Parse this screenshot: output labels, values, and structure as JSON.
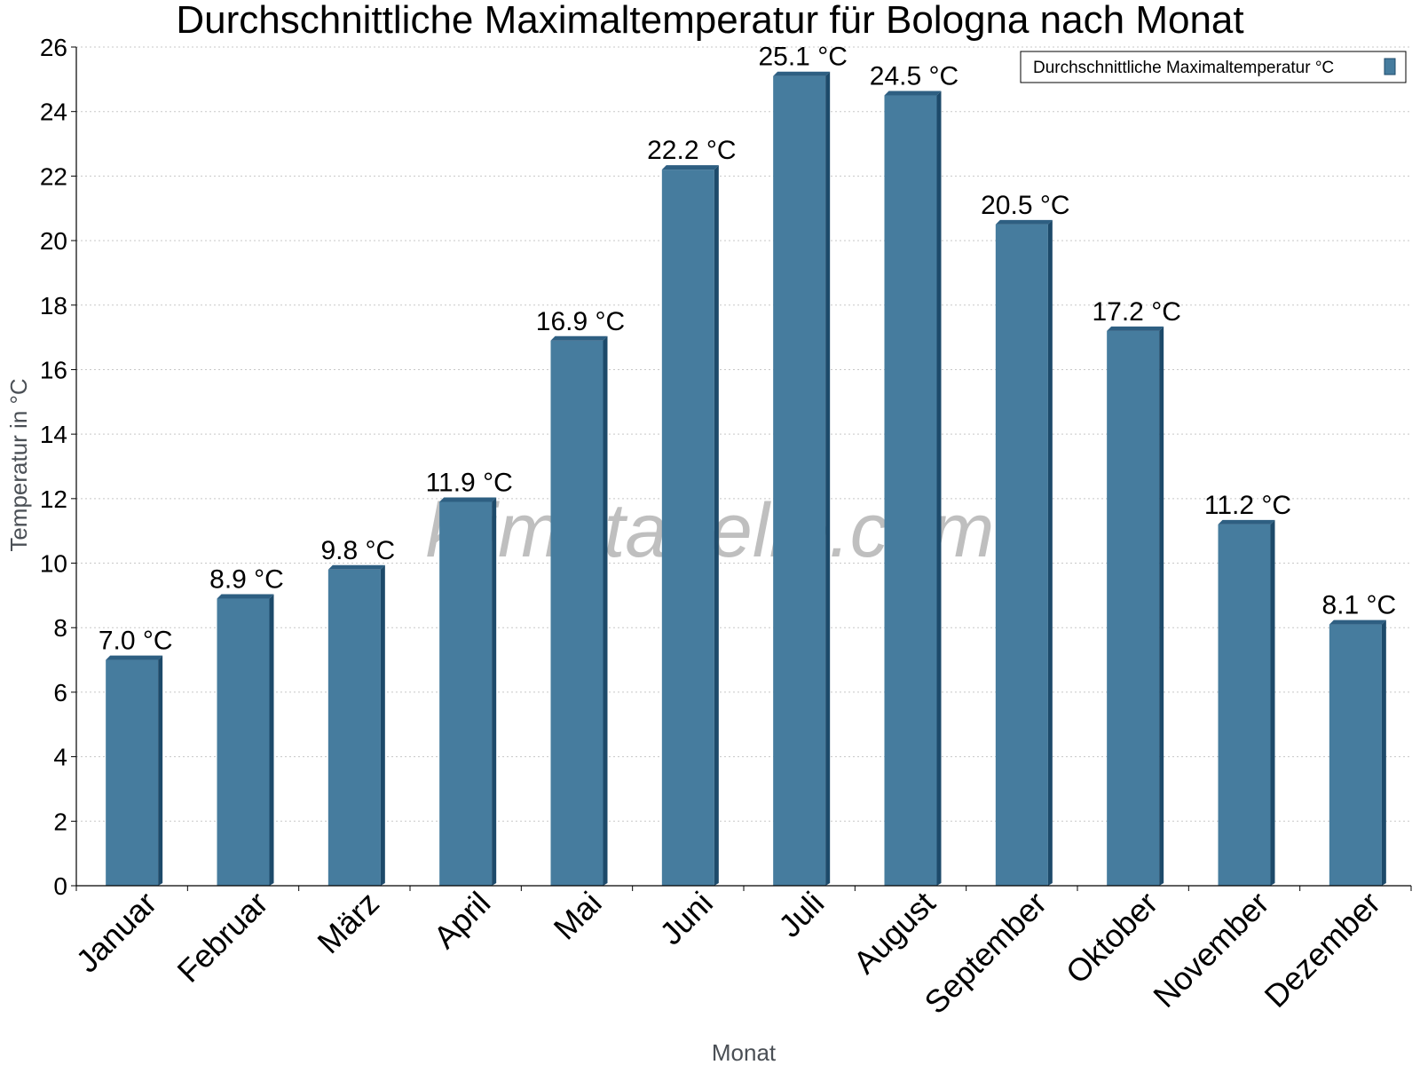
{
  "chart_data": {
    "type": "bar",
    "title": "Durchschnittliche Maximaltemperatur für Bologna nach Monat",
    "xlabel": "Monat",
    "ylabel": "Temperatur in °C",
    "categories": [
      "Januar",
      "Februar",
      "März",
      "April",
      "Mai",
      "Juni",
      "Juli",
      "August",
      "September",
      "Oktober",
      "November",
      "Dezember"
    ],
    "series": [
      {
        "name": "Durchschnittliche Maximaltemperatur °C",
        "values": [
          7.0,
          8.9,
          9.8,
          11.9,
          16.9,
          22.2,
          25.1,
          24.5,
          20.5,
          17.2,
          11.2,
          8.1
        ],
        "labels": [
          "7.0 °C",
          "8.9 °C",
          "9.8 °C",
          "11.9 °C",
          "16.9 °C",
          "22.2 °C",
          "25.1 °C",
          "24.5 °C",
          "20.5 °C",
          "17.2 °C",
          "11.2 °C",
          "8.1 °C"
        ]
      }
    ],
    "ylim": [
      0,
      26
    ],
    "yticks": [
      0,
      2,
      4,
      6,
      8,
      10,
      12,
      14,
      16,
      18,
      20,
      22,
      24,
      26
    ],
    "grid": true,
    "legend_position": "top-right",
    "colors": {
      "bar": "#467c9e",
      "bar_side": "#1d4a6a",
      "bar_top": "#2e5f82",
      "grid": "#c8c8c8"
    },
    "watermark": "klimatabelle.com"
  }
}
